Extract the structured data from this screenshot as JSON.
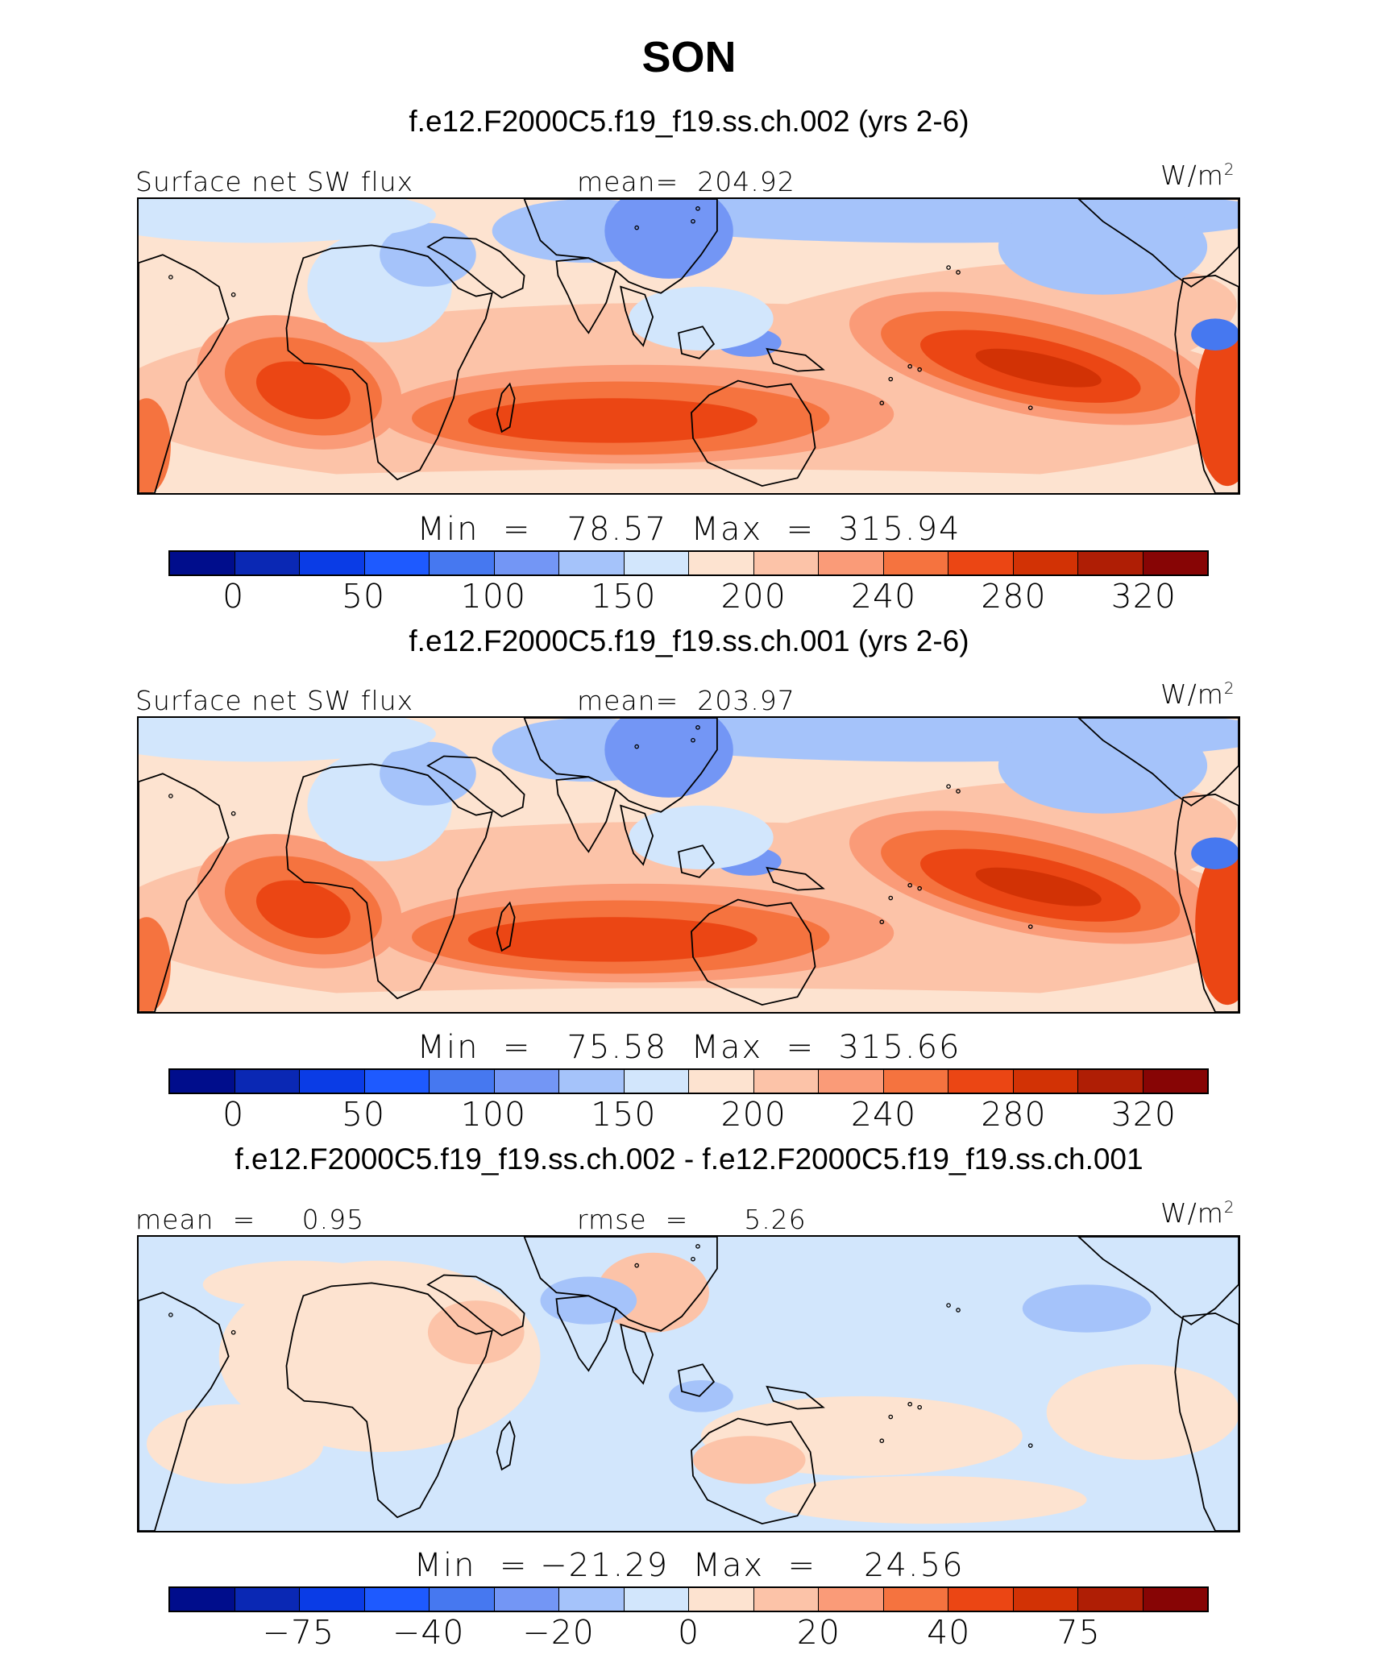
{
  "title": "SON",
  "colors": {
    "palette": [
      "#000d8c",
      "#0a28b4",
      "#0a3ce6",
      "#1e5aff",
      "#4678f0",
      "#7396f5",
      "#a5c3fa",
      "#d2e6fc",
      "#fde3d0",
      "#fcc3a8",
      "#fa9b78",
      "#f5733f",
      "#eb4614",
      "#d23205",
      "#af1e05",
      "#870505"
    ],
    "land_outline": "#000000"
  },
  "panels": [
    {
      "case_title": "f.e12.F2000C5.f19_f19.ss.ch.002 (yrs 2-6)",
      "left_label": "Surface net SW flux",
      "center_label": "mean=  204.92",
      "units": "W/m",
      "units_sup": "2",
      "minmax": "Min  =   78.57  Max  =  315.94",
      "tick_labels": [
        "0",
        "50",
        "100",
        "150",
        "200",
        "240",
        "280",
        "320"
      ]
    },
    {
      "case_title": "f.e12.F2000C5.f19_f19.ss.ch.001 (yrs 2-6)",
      "left_label": "Surface net SW flux",
      "center_label": "mean=  203.97",
      "units": "W/m",
      "units_sup": "2",
      "minmax": "Min  =   75.58  Max  =  315.66",
      "tick_labels": [
        "0",
        "50",
        "100",
        "150",
        "200",
        "240",
        "280",
        "320"
      ]
    },
    {
      "case_title": "f.e12.F2000C5.f19_f19.ss.ch.002 - f.e12.F2000C5.f19_f19.ss.ch.001",
      "left_label": "mean  =     0.95",
      "center_label": "rmse  =      5.26",
      "units": "W/m",
      "units_sup": "2",
      "minmax": "Min  = −21.29  Max  =    24.56",
      "tick_labels": [
        "−75",
        "−40",
        "−20",
        "0",
        "20",
        "40",
        "75"
      ]
    }
  ],
  "chart_data": [
    {
      "type": "heatmap",
      "title": "f.e12.F2000C5.f19_f19.ss.ch.002 (yrs 2-6)",
      "variable": "Surface net SW flux",
      "units": "W/m2",
      "season": "SON",
      "mean": 204.92,
      "min": 78.57,
      "max": 315.94,
      "colorbar_levels": [
        0,
        50,
        100,
        150,
        200,
        240,
        280,
        320
      ],
      "colorbar_bins": 16
    },
    {
      "type": "heatmap",
      "title": "f.e12.F2000C5.f19_f19.ss.ch.001 (yrs 2-6)",
      "variable": "Surface net SW flux",
      "units": "W/m2",
      "season": "SON",
      "mean": 203.97,
      "min": 75.58,
      "max": 315.66,
      "colorbar_levels": [
        0,
        50,
        100,
        150,
        200,
        240,
        280,
        320
      ],
      "colorbar_bins": 16
    },
    {
      "type": "heatmap",
      "title": "f.e12.F2000C5.f19_f19.ss.ch.002 - f.e12.F2000C5.f19_f19.ss.ch.001",
      "units": "W/m2",
      "season": "SON",
      "mean": 0.95,
      "rmse": 5.26,
      "min": -21.29,
      "max": 24.56,
      "colorbar_levels": [
        -75,
        -40,
        -20,
        0,
        20,
        40,
        75
      ],
      "colorbar_bins": 16
    }
  ]
}
